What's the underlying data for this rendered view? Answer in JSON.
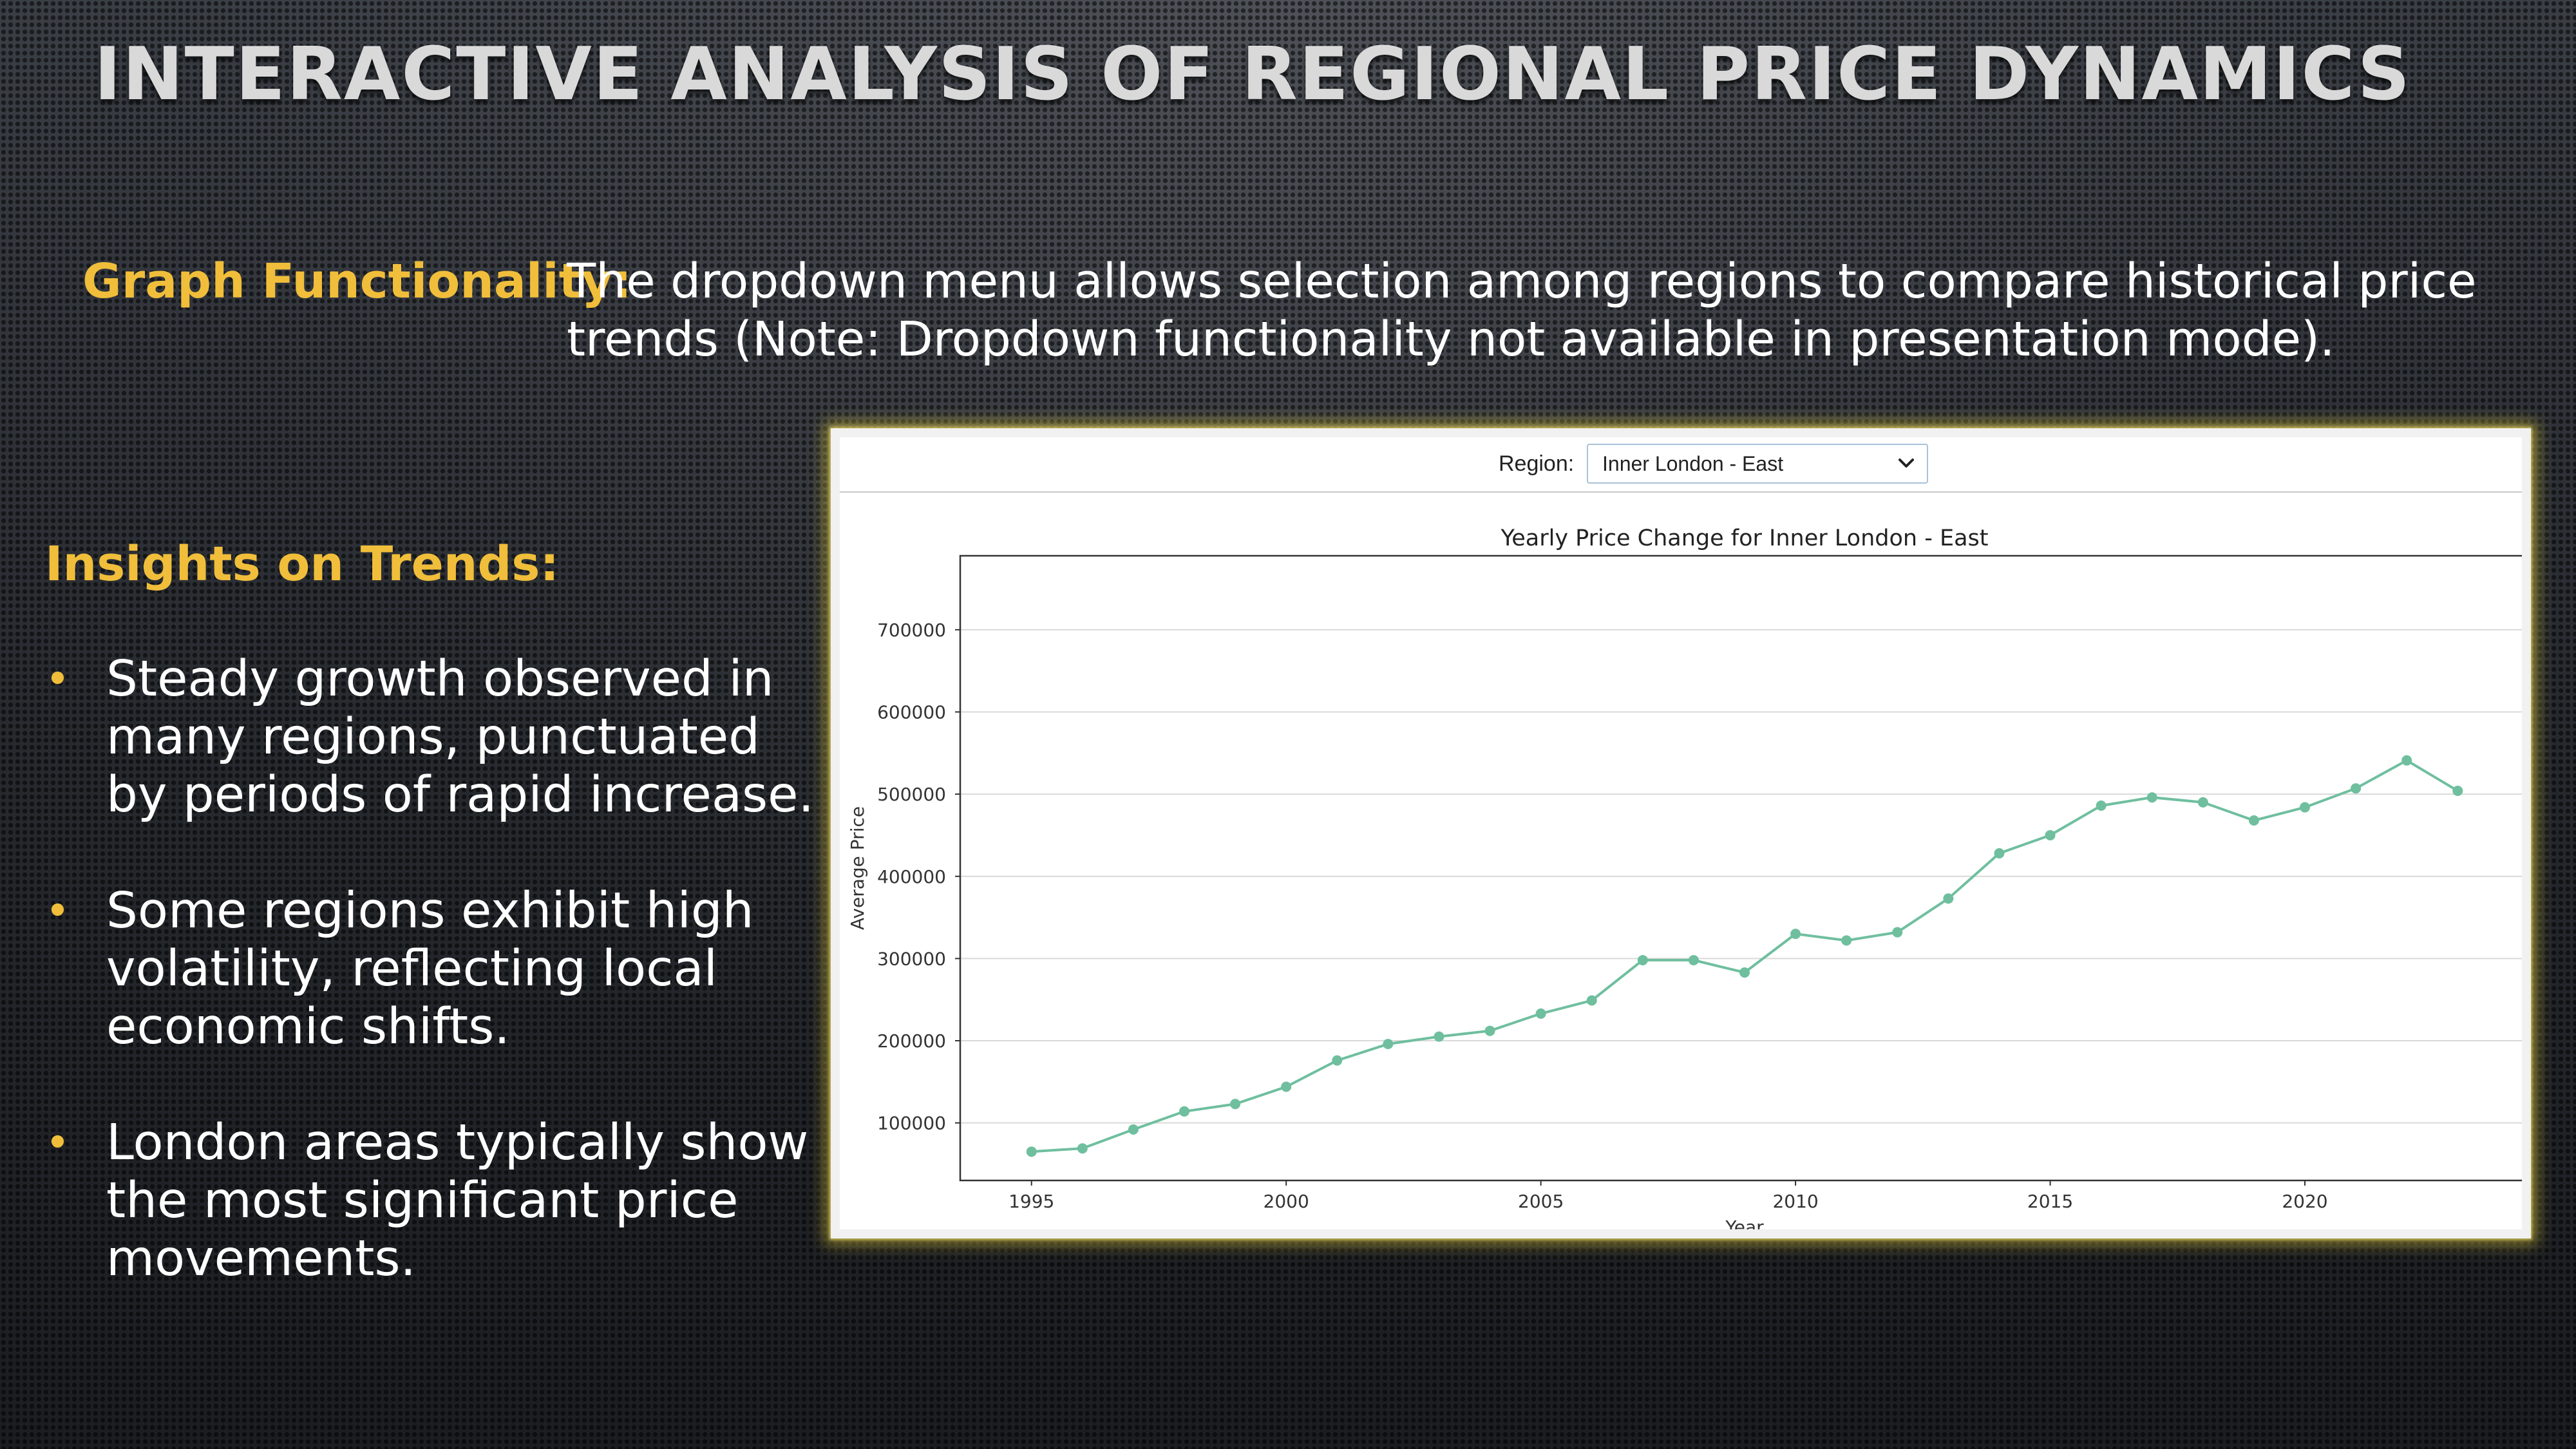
{
  "slide": {
    "title": "INTERACTIVE ANALYSIS OF REGIONAL PRICE DYNAMICS",
    "functionality_label": "Graph Functionality:",
    "functionality_text": "The dropdown menu allows selection among regions to compare historical price trends (Note: Dropdown functionality not available in presentation mode).",
    "insights_heading": "Insights on Trends:",
    "insights": [
      "Steady growth observed in many regions, punctuated by periods of rapid increase.",
      "Some regions exhibit high volatility, reflecting local economic shifts.",
      "London areas typically show the most significant price movements."
    ]
  },
  "widget": {
    "region_label": "Region:",
    "selected_region": "Inner London - East",
    "chevron_icon": "chevron-down-icon"
  },
  "colors": {
    "accent": "#f0be3a",
    "line": "#6fbf9f"
  },
  "chart_data": {
    "type": "line",
    "title": "Yearly Price Change for Inner London - East",
    "xlabel": "Year",
    "ylabel": "Average Price",
    "xlim": [
      1993.6,
      2024.4
    ],
    "ylim": [
      30000,
      790000
    ],
    "xticks": [
      1995,
      2000,
      2005,
      2010,
      2015,
      2020
    ],
    "yticks": [
      100000,
      200000,
      300000,
      400000,
      500000,
      600000,
      700000
    ],
    "grid": "horizontal",
    "series": [
      {
        "x": [
          1995,
          1996,
          1997,
          1998,
          1999,
          2000,
          2001,
          2002,
          2003,
          2004,
          2005,
          2006,
          2007,
          2008,
          2009,
          2010,
          2011,
          2012,
          2013,
          2014,
          2015,
          2016,
          2017,
          2018,
          2019,
          2020,
          2021,
          2022,
          2023
        ],
        "values": [
          65000,
          69000,
          92000,
          114000,
          123000,
          144000,
          176000,
          196000,
          205000,
          212000,
          233000,
          249000,
          298000,
          298000,
          283000,
          330000,
          322000,
          332000,
          373000,
          428000,
          450000,
          486000,
          496000,
          490000,
          468000,
          484000,
          507000,
          541000,
          504000
        ]
      }
    ]
  }
}
